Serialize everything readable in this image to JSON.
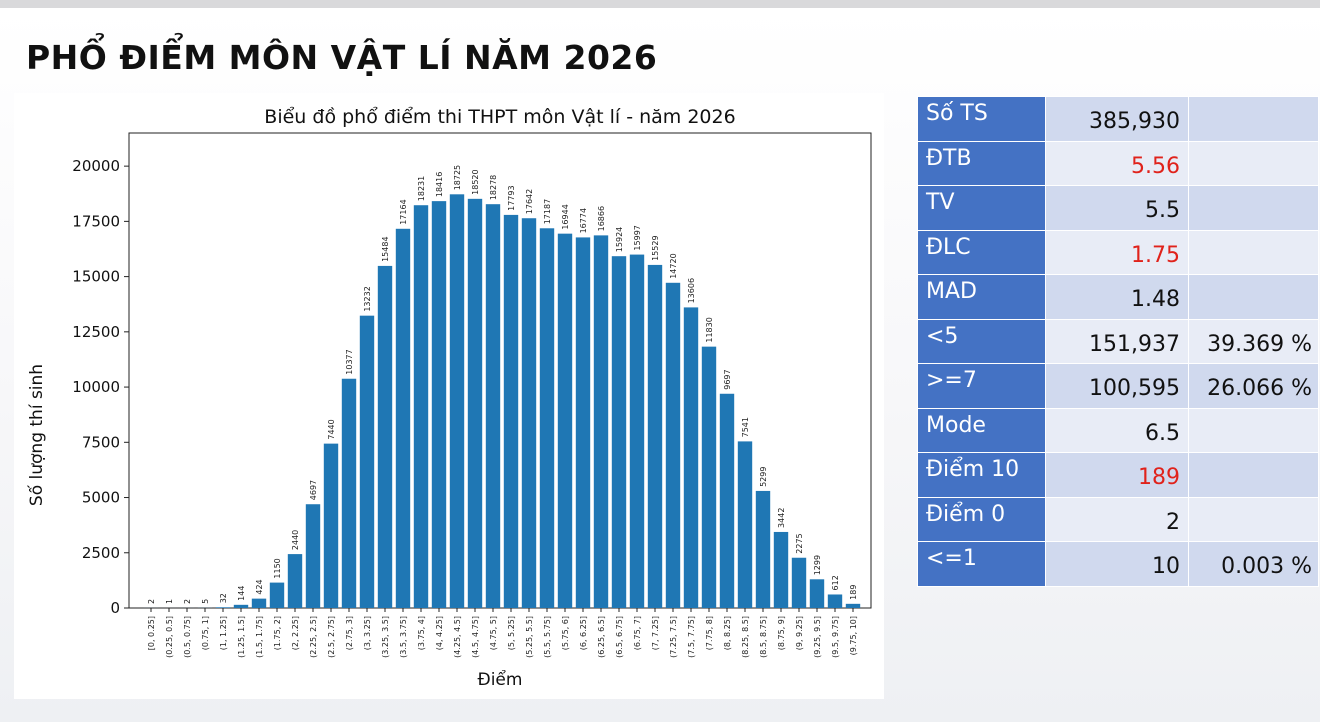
{
  "page_title": "PHỔ ĐIỂM MÔN VẬT LÍ NĂM 2026",
  "colors": {
    "bar": "#1f77b4",
    "header_cell": "#4472c4",
    "value_cell": "#d0d9ee",
    "highlight_text": "#e0221b"
  },
  "chart_data": {
    "type": "bar",
    "title": "Biểu đồ phổ điểm thi THPT môn Vật lí - năm 2026",
    "xlabel": "Điểm",
    "ylabel": "Số lượng thí sinh",
    "ylim": [
      0,
      21500
    ],
    "yticks": [
      0,
      2500,
      5000,
      7500,
      10000,
      12500,
      15000,
      17500,
      20000
    ],
    "grid": false,
    "categories": [
      "[0, 0.25]",
      "(0.25, 0.5]",
      "(0.5, 0.75]",
      "(0.75, 1]",
      "(1, 1.25]",
      "(1.25, 1.5]",
      "(1.5, 1.75]",
      "(1.75, 2]",
      "(2, 2.25]",
      "(2.25, 2.5]",
      "(2.5, 2.75]",
      "(2.75, 3]",
      "(3, 3.25]",
      "(3.25, 3.5]",
      "(3.5, 3.75]",
      "(3.75, 4]",
      "(4, 4.25]",
      "(4.25, 4.5]",
      "(4.5, 4.75]",
      "(4.75, 5]",
      "(5, 5.25]",
      "(5.25, 5.5]",
      "(5.5, 5.75]",
      "(5.75, 6]",
      "(6, 6.25]",
      "(6.25, 6.5]",
      "(6.5, 6.75]",
      "(6.75, 7]",
      "(7, 7.25]",
      "(7.25, 7.5]",
      "(7.5, 7.75]",
      "(7.75, 8]",
      "(8, 8.25]",
      "(8.25, 8.5]",
      "(8.5, 8.75]",
      "(8.75, 9]",
      "(9, 9.25]",
      "(9.25, 9.5]",
      "(9.5, 9.75]",
      "(9.75, 10]"
    ],
    "values": [
      2,
      1,
      2,
      5,
      32,
      144,
      424,
      1150,
      2440,
      4697,
      7440,
      10377,
      13232,
      15484,
      17164,
      18231,
      18416,
      18725,
      18520,
      18278,
      17793,
      17642,
      17187,
      16944,
      16774,
      16866,
      15924,
      15997,
      15529,
      14720,
      13606,
      11830,
      9697,
      7541,
      5299,
      3442,
      2275,
      1299,
      612,
      189
    ]
  },
  "stats": [
    {
      "label": "Số TS",
      "value": "385,930",
      "percent": "",
      "highlight": false
    },
    {
      "label": "ĐTB",
      "value": "5.56",
      "percent": "",
      "highlight": true
    },
    {
      "label": "TV",
      "value": "5.5",
      "percent": "",
      "highlight": false
    },
    {
      "label": "ĐLC",
      "value": "1.75",
      "percent": "",
      "highlight": true
    },
    {
      "label": "MAD",
      "value": "1.48",
      "percent": "",
      "highlight": false
    },
    {
      "label": "<5",
      "value": "151,937",
      "percent": "39.369 %",
      "highlight": false
    },
    {
      "label": ">=7",
      "value": "100,595",
      "percent": "26.066 %",
      "highlight": false
    },
    {
      "label": "Mode",
      "value": "6.5",
      "percent": "",
      "highlight": false
    },
    {
      "label": "Điểm 10",
      "value": "189",
      "percent": "",
      "highlight": true
    },
    {
      "label": "Điểm 0",
      "value": "2",
      "percent": "",
      "highlight": false
    },
    {
      "label": "<=1",
      "value": "10",
      "percent": "0.003 %",
      "highlight": false
    }
  ]
}
